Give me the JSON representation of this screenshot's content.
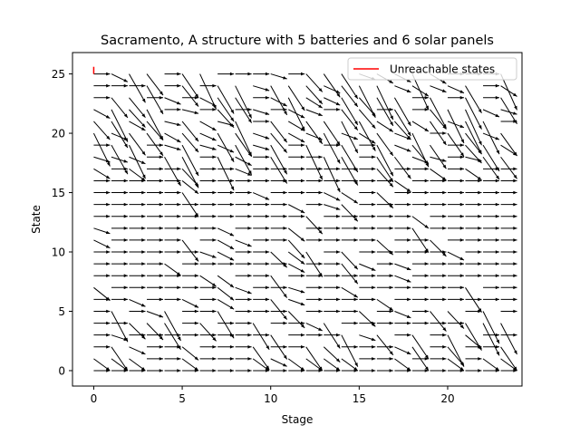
{
  "chart_data": {
    "type": "quiver",
    "title": "Sacramento, A structure with 5 batteries and 6 solar panels",
    "xlabel": "Stage",
    "ylabel": "State",
    "xlim": [
      -1.2,
      24.2
    ],
    "ylim": [
      -1.3,
      26.8
    ],
    "xticks": [
      0,
      5,
      10,
      15,
      20
    ],
    "yticks": [
      0,
      5,
      10,
      15,
      20,
      25
    ],
    "grid": false,
    "legend": {
      "position": "upper right",
      "entries": [
        {
          "label": "Unreachable states",
          "color": "#ff0000"
        }
      ]
    },
    "stages": 24,
    "states_max": 25,
    "arrow_color": "#000000",
    "unreachable_segment": {
      "x": [
        0,
        0
      ],
      "y": [
        25,
        25.6
      ]
    },
    "regions": [
      {
        "state_range": [
          0,
          5
        ],
        "description": "mostly flat rightward arrows with some downward diagonals"
      },
      {
        "state_range": [
          6,
          17
        ],
        "description": "predominantly flat rightward arrows"
      },
      {
        "state_range": [
          18,
          25
        ],
        "description": "mixed, many steep downward arrows"
      }
    ]
  }
}
